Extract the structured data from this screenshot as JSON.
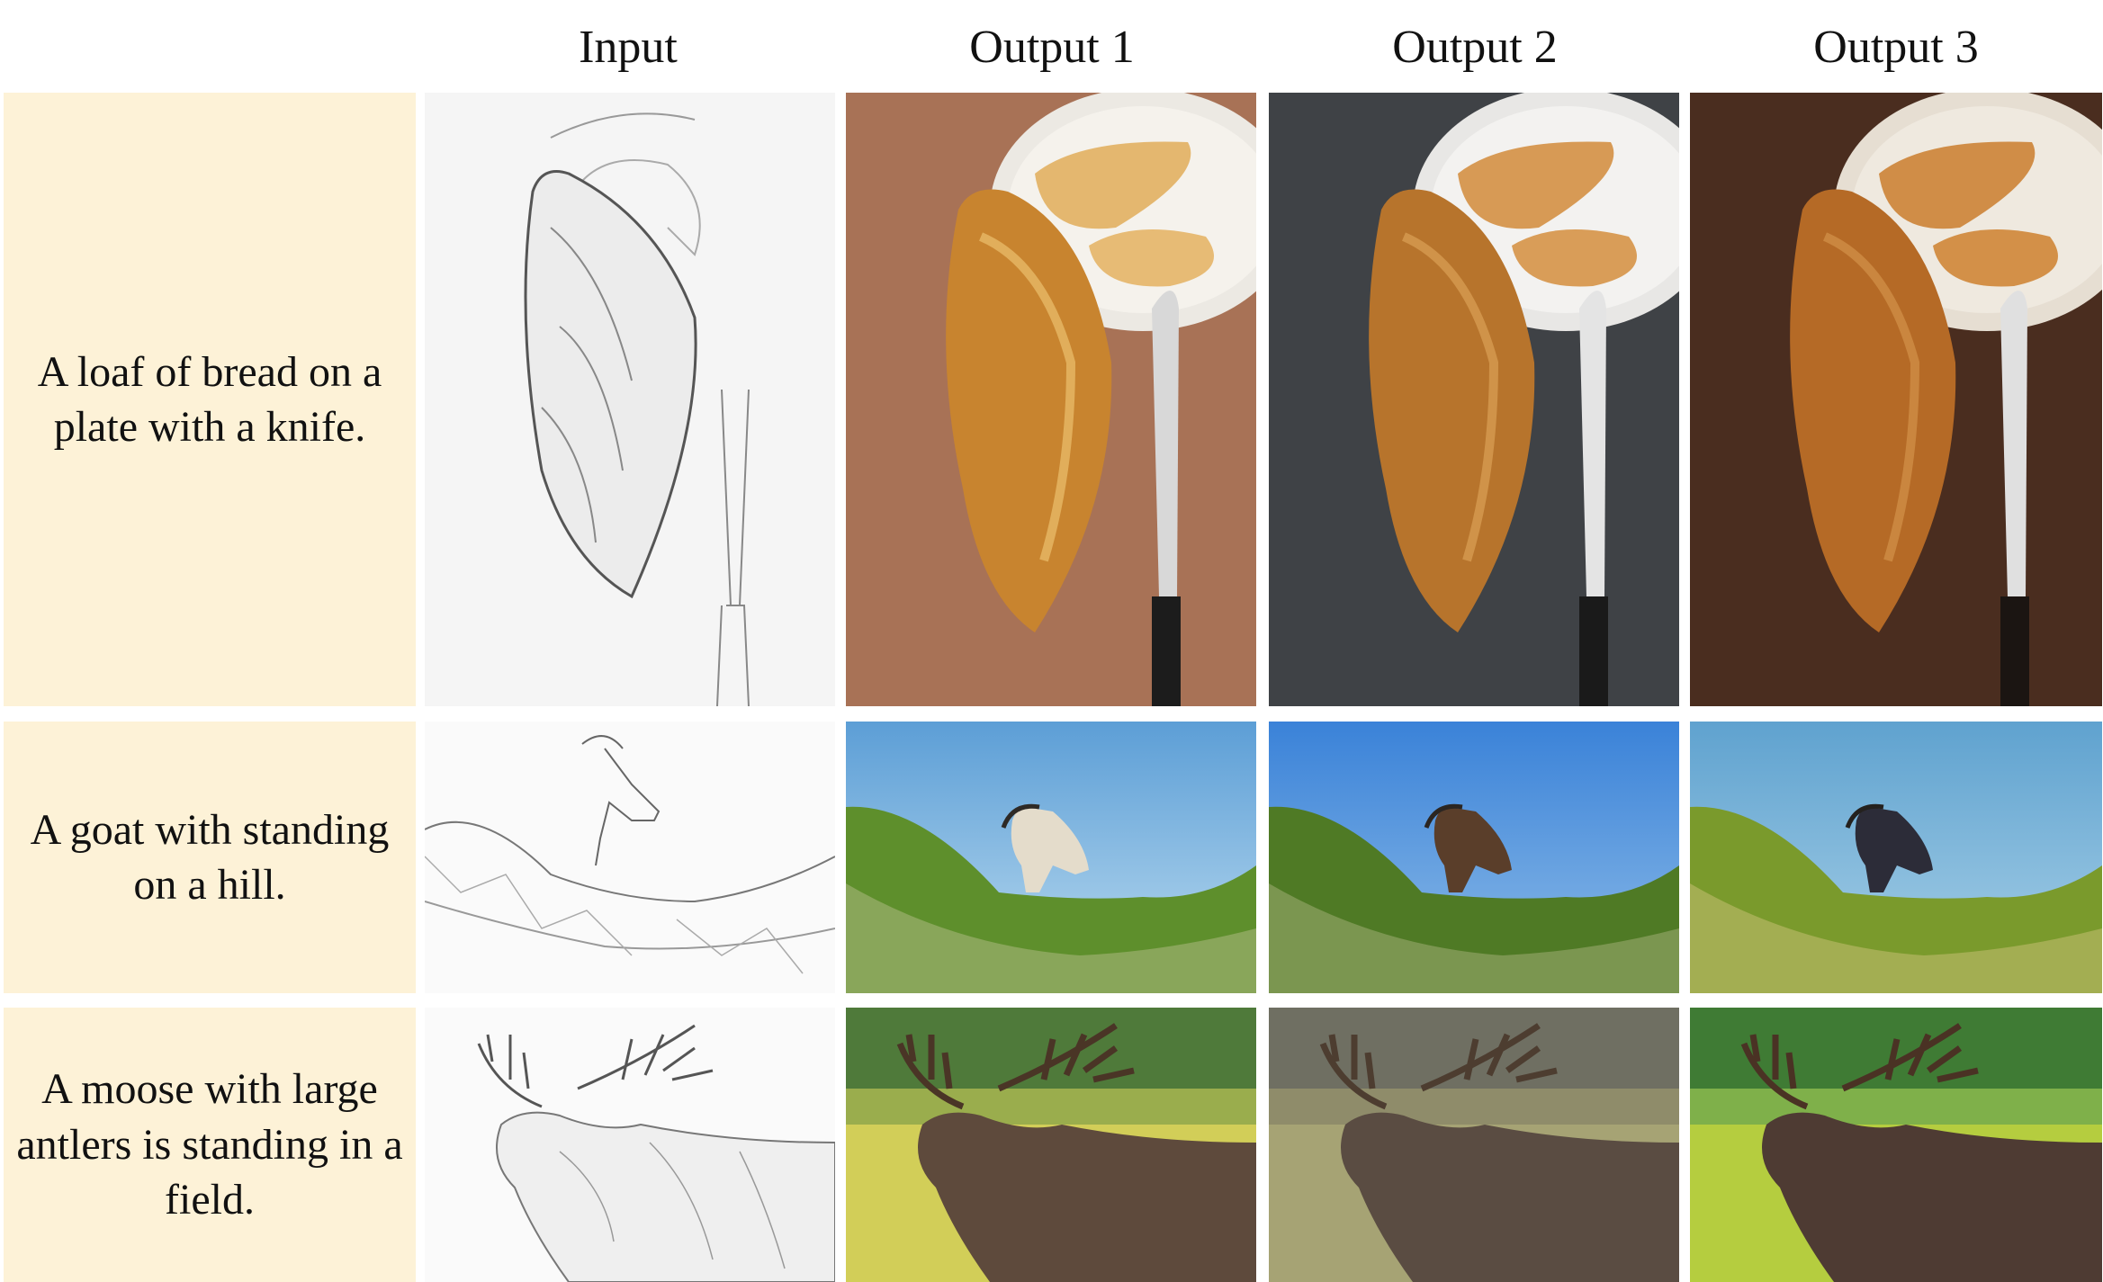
{
  "columns": [
    "Input",
    "Output 1",
    "Output 2",
    "Output 3"
  ],
  "rows": [
    {
      "caption": "A loaf of bread on a plate with a knife.",
      "subject": "bread",
      "backgrounds": [
        "#f4f4f4",
        "#a87256",
        "#3f4246",
        "#4a2d1f"
      ]
    },
    {
      "caption": "A goat with standing on a hill.",
      "subject": "goat",
      "backgrounds": [
        "#fafafa",
        "#8ec0e2",
        "#4f93dc",
        "#7cb4d2"
      ]
    },
    {
      "caption": "A moose with large antlers is standing in a field.",
      "subject": "moose",
      "backgrounds": [
        "#fafafa",
        "#c6c64c",
        "#9d9a6c",
        "#a8c640"
      ]
    }
  ]
}
